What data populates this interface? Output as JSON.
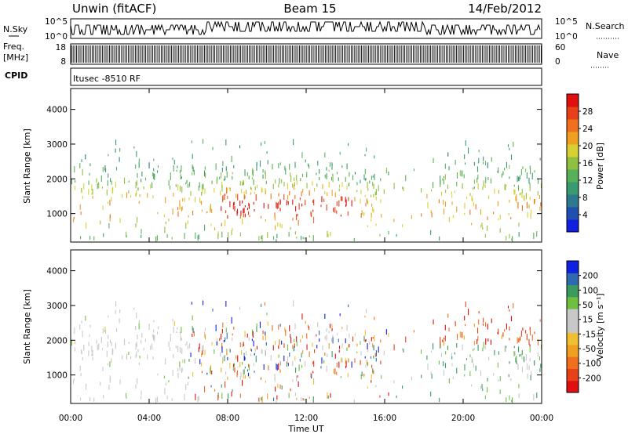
{
  "header": {
    "site": "Unwin (fitACF)",
    "beam": "Beam 15",
    "date": "14/Feb/2012"
  },
  "panels": {
    "nsky_label": "N.Sky",
    "nsearch_label": "N.Search",
    "nsky_ticks": [
      "10^5",
      "10^0"
    ],
    "nsearch_ticks": [
      "10^5",
      "10^0"
    ],
    "freq_label": "Freq.",
    "freq_unit": "[MHz]",
    "freq_ticks": [
      "18",
      "8"
    ],
    "nave_label": "Nave",
    "nave_ticks": [
      "60",
      "0"
    ],
    "cpid_label": "CPID",
    "cpid_text": "Itusec -8510 RF"
  },
  "chart_data": [
    {
      "type": "heatmap",
      "title": "",
      "ylabel": "Slant Range [km]",
      "xlabel": "",
      "y_ticks": [
        "4000",
        "3000",
        "2000",
        "1000"
      ],
      "ylim": [
        180,
        4600
      ],
      "colorbar": {
        "label": "Power [dB]",
        "ticks": [
          "28",
          "24",
          "20",
          "16",
          "12",
          "8",
          "4"
        ],
        "range": [
          0,
          32
        ],
        "colors": [
          "#1020e0",
          "#1f4fb0",
          "#2d7a8f",
          "#3a9a70",
          "#58b05a",
          "#90c040",
          "#d8d030",
          "#f0a020",
          "#f07020",
          "#e84018",
          "#e01010"
        ]
      }
    },
    {
      "type": "heatmap",
      "title": "",
      "ylabel": "Slant Range [km]",
      "xlabel": "Time UT",
      "y_ticks": [
        "4000",
        "3000",
        "2000",
        "1000"
      ],
      "x_ticks": [
        "00:00",
        "04:00",
        "08:00",
        "12:00",
        "16:00",
        "20:00",
        "00:00"
      ],
      "ylim": [
        180,
        4600
      ],
      "colorbar": {
        "label": "Velocity [m s⁻¹]",
        "ticks": [
          "200",
          "100",
          "50",
          "15",
          "-15",
          "-50",
          "-100",
          "-200"
        ],
        "range": [
          -250,
          250
        ],
        "colors": [
          "#e01010",
          "#e84018",
          "#f07020",
          "#f0a020",
          "#f0c030",
          "#c8c8c8",
          "#c8c8c8",
          "#70c040",
          "#3a9a60",
          "#2d6ab0",
          "#1020e0"
        ]
      }
    }
  ]
}
